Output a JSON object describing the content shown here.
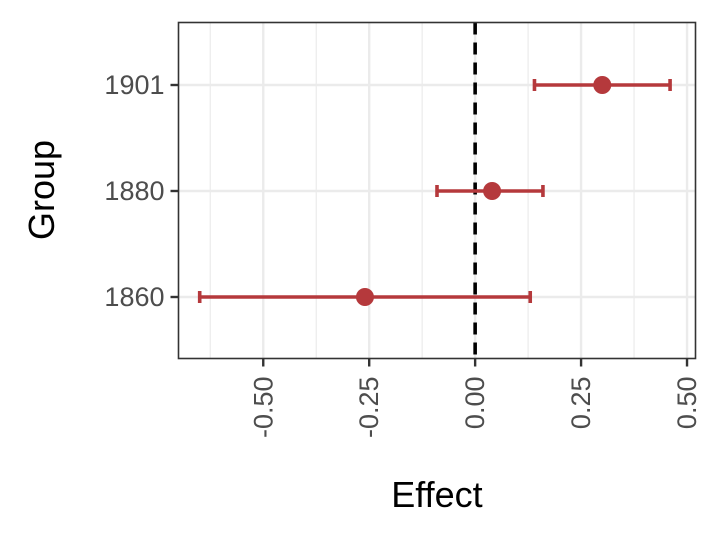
{
  "chart_data": {
    "type": "forest",
    "xlabel": "Effect",
    "ylabel": "Group",
    "xlim": [
      -0.7,
      0.52
    ],
    "x_ticks": [
      -0.5,
      -0.25,
      0.0,
      0.25,
      0.5
    ],
    "x_tick_labels": [
      "-0.50",
      "-0.25",
      "0.00",
      "0.25",
      "0.50"
    ],
    "reference_line": 0.0,
    "categories": [
      "1860",
      "1880",
      "1901"
    ],
    "points": [
      {
        "group": "1860",
        "estimate": -0.26,
        "lower": -0.65,
        "upper": 0.13
      },
      {
        "group": "1880",
        "estimate": 0.04,
        "lower": -0.09,
        "upper": 0.16
      },
      {
        "group": "1901",
        "estimate": 0.3,
        "lower": 0.14,
        "upper": 0.46
      }
    ],
    "grid": true,
    "colors": {
      "point": "#b5393c",
      "reference": "#000000"
    }
  }
}
